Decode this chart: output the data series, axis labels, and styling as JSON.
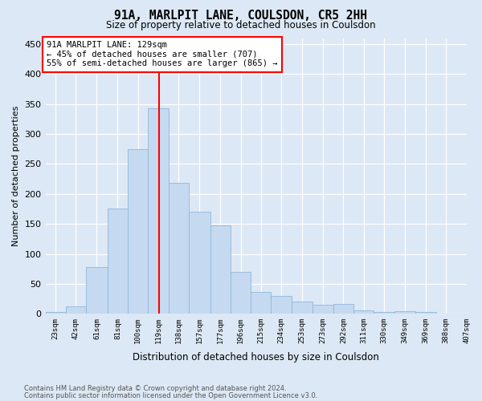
{
  "title": "91A, MARLPIT LANE, COULSDON, CR5 2HH",
  "subtitle": "Size of property relative to detached houses in Coulsdon",
  "xlabel": "Distribution of detached houses by size in Coulsdon",
  "ylabel": "Number of detached properties",
  "footnote1": "Contains HM Land Registry data © Crown copyright and database right 2024.",
  "footnote2": "Contains public sector information licensed under the Open Government Licence v3.0.",
  "bar_edges": [
    23,
    42,
    61,
    81,
    100,
    119,
    138,
    157,
    177,
    196,
    215,
    234,
    253,
    273,
    292,
    311,
    330,
    349,
    369,
    388,
    407
  ],
  "bar_labels": [
    "23sqm",
    "42sqm",
    "61sqm",
    "81sqm",
    "100sqm",
    "119sqm",
    "138sqm",
    "157sqm",
    "177sqm",
    "196sqm",
    "215sqm",
    "234sqm",
    "253sqm",
    "273sqm",
    "292sqm",
    "311sqm",
    "330sqm",
    "349sqm",
    "369sqm",
    "388sqm",
    "407sqm"
  ],
  "bar_heights": [
    3,
    13,
    78,
    175,
    275,
    343,
    218,
    170,
    148,
    70,
    36,
    30,
    20,
    15,
    17,
    6,
    3,
    5,
    3,
    0,
    0
  ],
  "bar_color": "#c5d9f0",
  "bar_edgecolor": "#90b8d8",
  "property_size": 129,
  "vline_color": "red",
  "annotation_line1": "91A MARLPIT LANE: 129sqm",
  "annotation_line2": "← 45% of detached houses are smaller (707)",
  "annotation_line3": "55% of semi-detached houses are larger (865) →",
  "annotation_box_edgecolor": "red",
  "annotation_box_facecolor": "white",
  "ylim_max": 460,
  "yticks": [
    0,
    50,
    100,
    150,
    200,
    250,
    300,
    350,
    400,
    450
  ],
  "background_color": "#dce8f5",
  "plot_bg_color": "#dce8f5",
  "grid_color": "white",
  "title_fontsize": 10.5,
  "subtitle_fontsize": 8.5,
  "ylabel_fontsize": 8,
  "xlabel_fontsize": 8.5,
  "xtick_fontsize": 6.5,
  "ytick_fontsize": 8,
  "footnote_fontsize": 6,
  "annotation_fontsize": 7.5
}
